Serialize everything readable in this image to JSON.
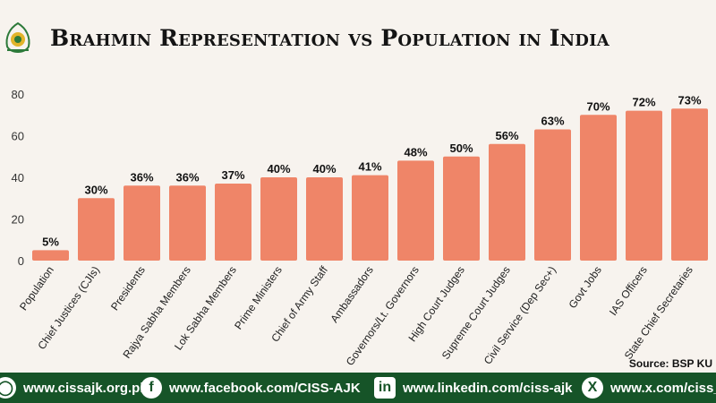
{
  "header": {
    "title": "Brahmin Representation vs Population in India"
  },
  "source": "Source: BSP KU",
  "footer": {
    "website": "www.cissajk.org.pk",
    "facebook": "www.facebook.com/CISS-AJK",
    "linkedin": "www.linkedin.com/ciss-ajk",
    "x": "www.x.com/ciss_"
  },
  "icons": {
    "logo": "ciss-emblem-icon",
    "facebook": "facebook-icon",
    "linkedin": "linkedin-icon",
    "x": "x-icon",
    "web": "globe-icon"
  },
  "colors": {
    "bar": "#ef8568",
    "background": "#f7f3ee",
    "footer": "#165428"
  },
  "chart_data": {
    "type": "bar",
    "categories": [
      "Population",
      "Chief Justices (CJIs)",
      "Presidents",
      "Rajya Sabha Members",
      "Lok Sabha Members",
      "Prime Ministers",
      "Chief of Army Staff",
      "Ambassadors",
      "Governors/Lt. Governors",
      "High Court Judges",
      "Supreme Court Judges",
      "Civil Service (Dep Sec+)",
      "Govt Jobs",
      "IAS Officers",
      "State Chief Secretaries"
    ],
    "values": [
      5,
      30,
      36,
      36,
      37,
      40,
      40,
      41,
      48,
      50,
      56,
      63,
      70,
      72,
      73
    ],
    "data_labels": [
      "5%",
      "30%",
      "36%",
      "36%",
      "37%",
      "40%",
      "40%",
      "41%",
      "48%",
      "50%",
      "56%",
      "63%",
      "70%",
      "72%",
      "73%"
    ],
    "yticks": [
      "0",
      "20",
      "40",
      "60",
      "80"
    ],
    "ylim": [
      0,
      80
    ],
    "grid": false,
    "legend": "none"
  }
}
